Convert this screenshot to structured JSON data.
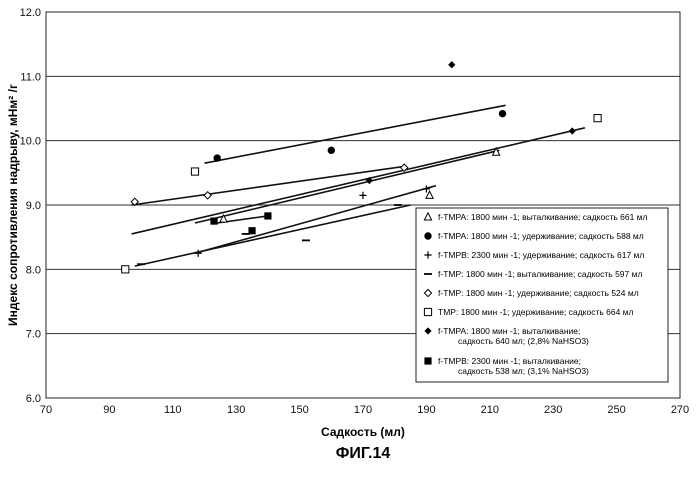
{
  "chart_data": {
    "type": "scatter",
    "title": "",
    "xlabel": "Садкость (мл)",
    "ylabel": "Индекс сопротивления надрыву, мНм² /г",
    "xlim": [
      70,
      270
    ],
    "ylim": [
      6.0,
      12.0
    ],
    "xticks": [
      "70",
      "90",
      "110",
      "130",
      "150",
      "170",
      "190",
      "210",
      "230",
      "250",
      "270"
    ],
    "yticks": [
      "6.0",
      "7.0",
      "8.0",
      "9.0",
      "10.0",
      "11.0",
      "12.0"
    ],
    "grid": "horizontal",
    "legend_position": "bottom-right",
    "series": [
      {
        "name": "f-TMPA: 1800 мин -1; выталкивание; садкость 661 мл",
        "marker": "triangle-open",
        "points": [
          [
            126,
            8.78
          ],
          [
            191,
            9.15
          ],
          [
            212,
            9.82
          ]
        ],
        "trend": [
          [
            117,
            8.72
          ],
          [
            213,
            9.85
          ]
        ]
      },
      {
        "name": "f-TMPA: 1800 мин -1; удерживание; садкость 588 мл",
        "marker": "circle-filled",
        "points": [
          [
            124,
            9.73
          ],
          [
            160,
            9.85
          ],
          [
            214,
            10.42
          ]
        ],
        "trend": [
          [
            120,
            9.65
          ],
          [
            215,
            10.55
          ]
        ]
      },
      {
        "name": "f-TMPB: 2300 мин -1; удерживание; садкость 617 мл",
        "marker": "plus",
        "points": [
          [
            118,
            8.25
          ],
          [
            170,
            9.15
          ],
          [
            190,
            9.25
          ]
        ],
        "trend": [
          [
            117,
            8.25
          ],
          [
            193,
            9.3
          ]
        ]
      },
      {
        "name": "f-TMP: 1800 мин -1; выталкивание; садкость 597 мл",
        "marker": "dash",
        "points": [
          [
            100,
            8.08
          ],
          [
            133,
            8.55
          ],
          [
            152,
            8.45
          ],
          [
            181,
            9.0
          ]
        ],
        "trend": [
          [
            98,
            8.05
          ],
          [
            185,
            9.0
          ]
        ]
      },
      {
        "name": "f-TMP: 1800 мин -1;  удерживание; садкость  524 мл",
        "marker": "diamond-open",
        "points": [
          [
            98,
            9.05
          ],
          [
            121,
            9.15
          ],
          [
            183,
            9.58
          ]
        ],
        "trend": [
          [
            97,
            9.0
          ],
          [
            183,
            9.6
          ]
        ]
      },
      {
        "name": "TMP: 1800 мин -1;  удерживание; садкость  664 мл",
        "marker": "square-open",
        "points": [
          [
            95,
            8.0
          ],
          [
            117,
            9.52
          ],
          [
            244,
            10.35
          ]
        ],
        "trend": []
      },
      {
        "name": "f-TMPA: 1800 мин -1; выталкивание;",
        "name_line2": "садкость 640 мл; (2,8% NaHSO3)",
        "marker": "diamond-filled",
        "points": [
          [
            198,
            11.18
          ],
          [
            172,
            9.38
          ],
          [
            236,
            10.15
          ]
        ],
        "trend": [
          [
            97,
            8.55
          ],
          [
            240,
            10.2
          ]
        ]
      },
      {
        "name": "f-TMPB: 2300 мин -1; выталкивание;",
        "name_line2": "садкость 538 мл; (3,1% NaHSO3)",
        "marker": "square-filled",
        "points": [
          [
            123,
            8.75
          ],
          [
            135,
            8.6
          ],
          [
            140,
            8.83
          ]
        ],
        "trend": [
          [
            124,
            8.72
          ],
          [
            140,
            8.83
          ]
        ]
      }
    ]
  },
  "caption": "ФИГ.14"
}
